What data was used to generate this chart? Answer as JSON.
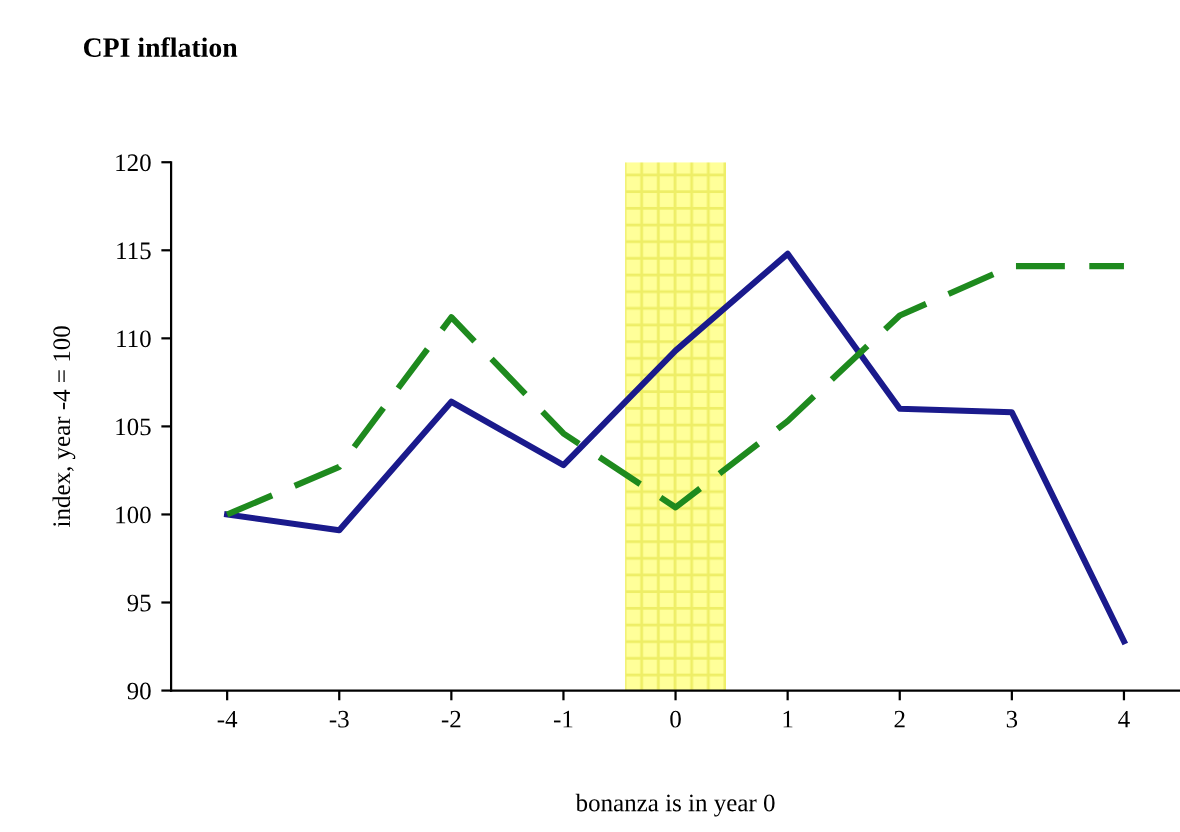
{
  "chart_data": {
    "type": "line",
    "title": "CPI inflation",
    "xlabel": "bonanza is in year 0",
    "ylabel": "index, year -4 = 100",
    "x": [
      -4,
      -3,
      -2,
      -1,
      0,
      1,
      2,
      3,
      4
    ],
    "series": [
      {
        "color": "#1a1a8c",
        "line_style": "solid",
        "values": [
          100,
          99.1,
          106.4,
          102.8,
          109.3,
          114.8,
          106,
          105.8,
          92.8
        ]
      },
      {
        "color": "#1e8a1e",
        "line_style": "dashed",
        "values": [
          100,
          102.7,
          111.2,
          104.6,
          100.4,
          105.3,
          111.3,
          114.1,
          114.1
        ]
      }
    ],
    "xlim": [
      -4.5,
      4.5
    ],
    "xticks": [
      -4,
      -3,
      -2,
      -1,
      0,
      1,
      2,
      3,
      4
    ],
    "ylim": [
      90,
      120
    ],
    "yticks": [
      90,
      95,
      100,
      105,
      110,
      115,
      120
    ],
    "bands": [
      {
        "axis": "x",
        "from": -0.45,
        "to": 0.45,
        "color": "#ffff99"
      }
    ],
    "grid": false,
    "legend": false,
    "marker": "none"
  }
}
